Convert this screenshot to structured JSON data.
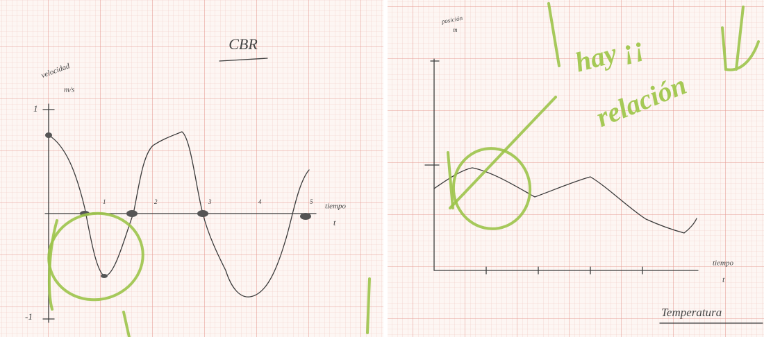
{
  "left_sheet": {
    "title": "CBR",
    "y_label": [
      "velocidad",
      "m/s"
    ],
    "x_label": [
      "tiempo",
      "t"
    ],
    "y_ticks": [
      "1",
      "-1"
    ],
    "x_ticks": [
      "1",
      "2",
      "3",
      "4",
      "5"
    ]
  },
  "right_sheet": {
    "y_label": [
      "posición",
      "m"
    ],
    "annotation": [
      "hay ¡¡",
      "relación"
    ],
    "x_label": [
      "tiempo",
      "t"
    ],
    "footer": "Temperatura"
  }
}
